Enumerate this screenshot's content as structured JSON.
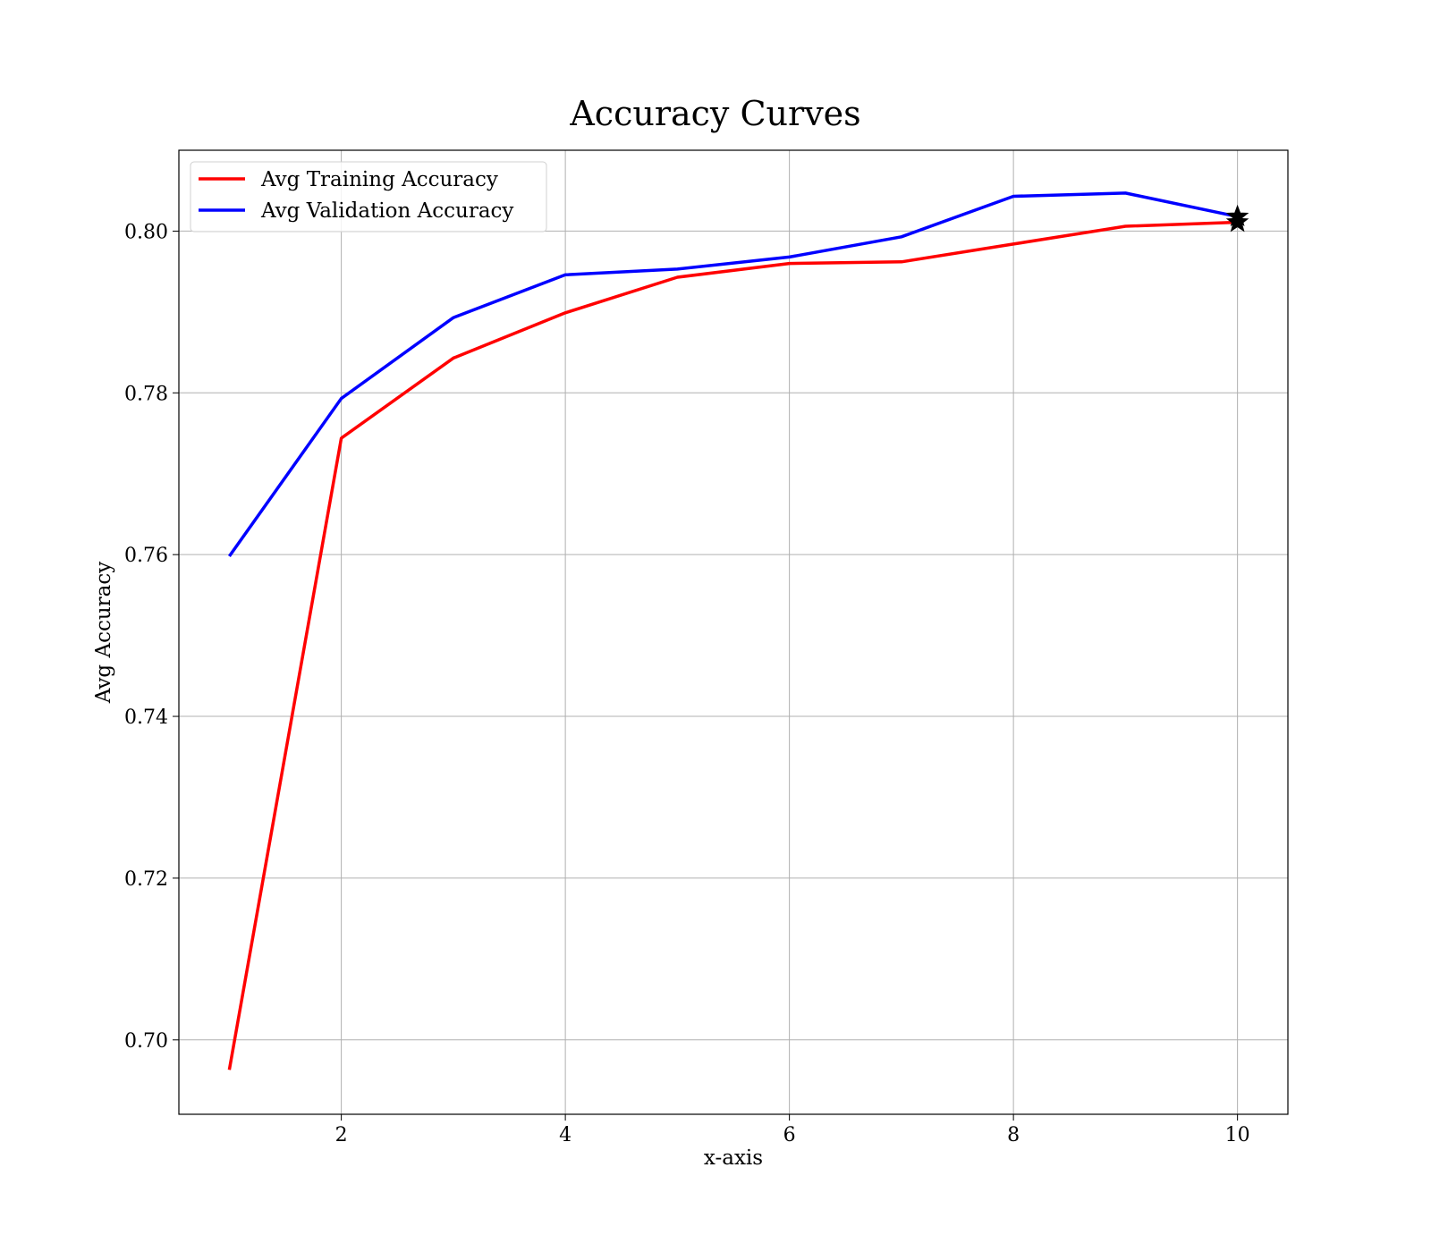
{
  "chart_data": {
    "type": "line",
    "title": "Accuracy Curves",
    "xlabel": "x-axis",
    "ylabel": "Avg Accuracy",
    "x": [
      1,
      2,
      3,
      4,
      5,
      6,
      7,
      8,
      9,
      10
    ],
    "xlim": [
      0.55,
      10.45
    ],
    "ylim": [
      0.6908,
      0.81
    ],
    "xticks": [
      2,
      4,
      6,
      8,
      10
    ],
    "xtick_labels": [
      "2",
      "4",
      "6",
      "8",
      "10"
    ],
    "yticks": [
      0.7,
      0.72,
      0.74,
      0.76,
      0.78,
      0.8
    ],
    "ytick_labels": [
      "0.70",
      "0.72",
      "0.74",
      "0.76",
      "0.78",
      "0.80"
    ],
    "grid": true,
    "legend_position": "upper-left",
    "series": [
      {
        "name": "Avg Training Accuracy",
        "color": "#ff0000",
        "values": [
          0.6963,
          0.7744,
          0.7843,
          0.7899,
          0.7943,
          0.796,
          0.7962,
          0.7984,
          0.8006,
          0.8011
        ]
      },
      {
        "name": "Avg Validation Accuracy",
        "color": "#0000ff",
        "values": [
          0.7598,
          0.7793,
          0.7893,
          0.7946,
          0.7953,
          0.7968,
          0.7993,
          0.8043,
          0.8047,
          0.8018
        ]
      }
    ],
    "markers": [
      {
        "series": "Avg Training Accuracy",
        "x": 10,
        "y": 0.8011,
        "shape": "star-icon",
        "color": "#000000"
      },
      {
        "series": "Avg Validation Accuracy",
        "x": 10,
        "y": 0.8018,
        "shape": "star-icon",
        "color": "#000000"
      }
    ]
  }
}
